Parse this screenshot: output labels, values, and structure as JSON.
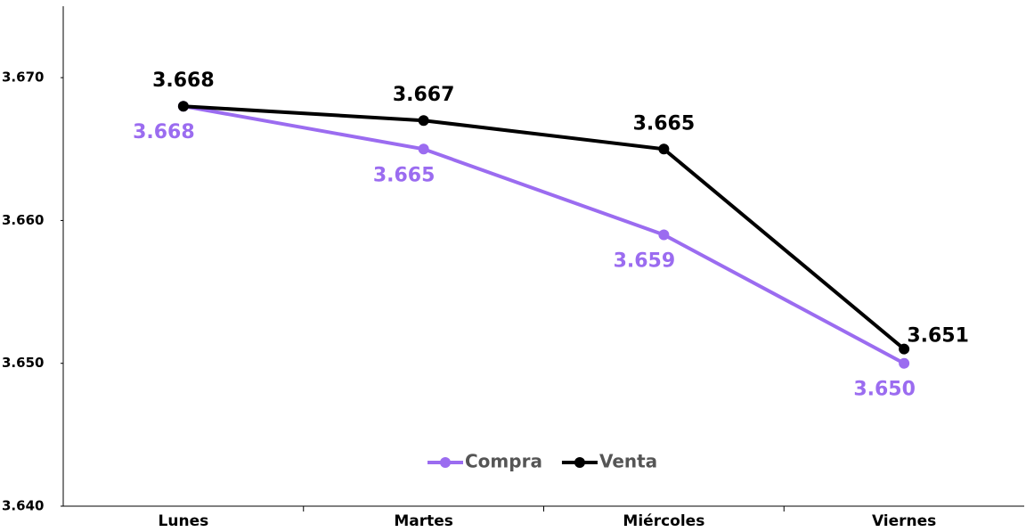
{
  "chart_data": {
    "type": "line",
    "categories": [
      "Lunes",
      "Martes",
      "Miércoles",
      "Viernes"
    ],
    "series": [
      {
        "name": "Compra",
        "color": "#9b6cf0",
        "values": [
          3.668,
          3.665,
          3.659,
          3.65
        ],
        "value_labels": [
          "3.668",
          "3.665",
          "3.659",
          "3.650"
        ]
      },
      {
        "name": "Venta",
        "color": "#000000",
        "values": [
          3.668,
          3.667,
          3.665,
          3.651
        ],
        "value_labels": [
          "3.668",
          "3.667",
          "3.665",
          "3.651"
        ]
      }
    ],
    "ylim": [
      3.64,
      3.675
    ],
    "yticks": [
      {
        "value": 3.64,
        "label": "3.640"
      },
      {
        "value": 3.65,
        "label": "3.650"
      },
      {
        "value": 3.66,
        "label": "3.660"
      },
      {
        "value": 3.67,
        "label": "3.670"
      }
    ],
    "legend": "bottom"
  }
}
